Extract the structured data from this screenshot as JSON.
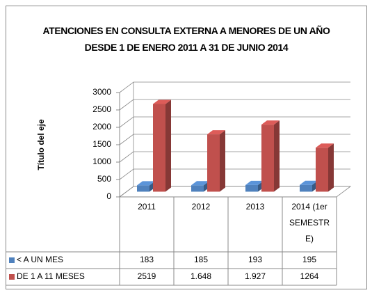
{
  "chart_data": {
    "type": "bar3d",
    "title": "ATENCIONES EN CONSULTA EXTERNA A MENORES DE UN AÑO DESDE 1 DE ENERO 2011 A 31 DE JUNIO 2014",
    "y_axis_label": "Título del eje",
    "categories": [
      "2011",
      "2012",
      "2013",
      "2014 (1er SEMESTRE)"
    ],
    "series": [
      {
        "name": "< A UN MES",
        "color": "#4f81bd",
        "values": [
          183,
          185,
          193,
          195
        ]
      },
      {
        "name": "DE 1 A 11 MESES",
        "color": "#c0504d",
        "values": [
          2519,
          1648,
          1927,
          1264
        ],
        "value_labels": [
          "2519",
          "1.648",
          "1.927",
          "1264"
        ]
      }
    ],
    "ylim": [
      0,
      3000
    ],
    "yticks": [
      0,
      500,
      1000,
      1500,
      2000,
      2500,
      3000
    ],
    "grid": true
  }
}
